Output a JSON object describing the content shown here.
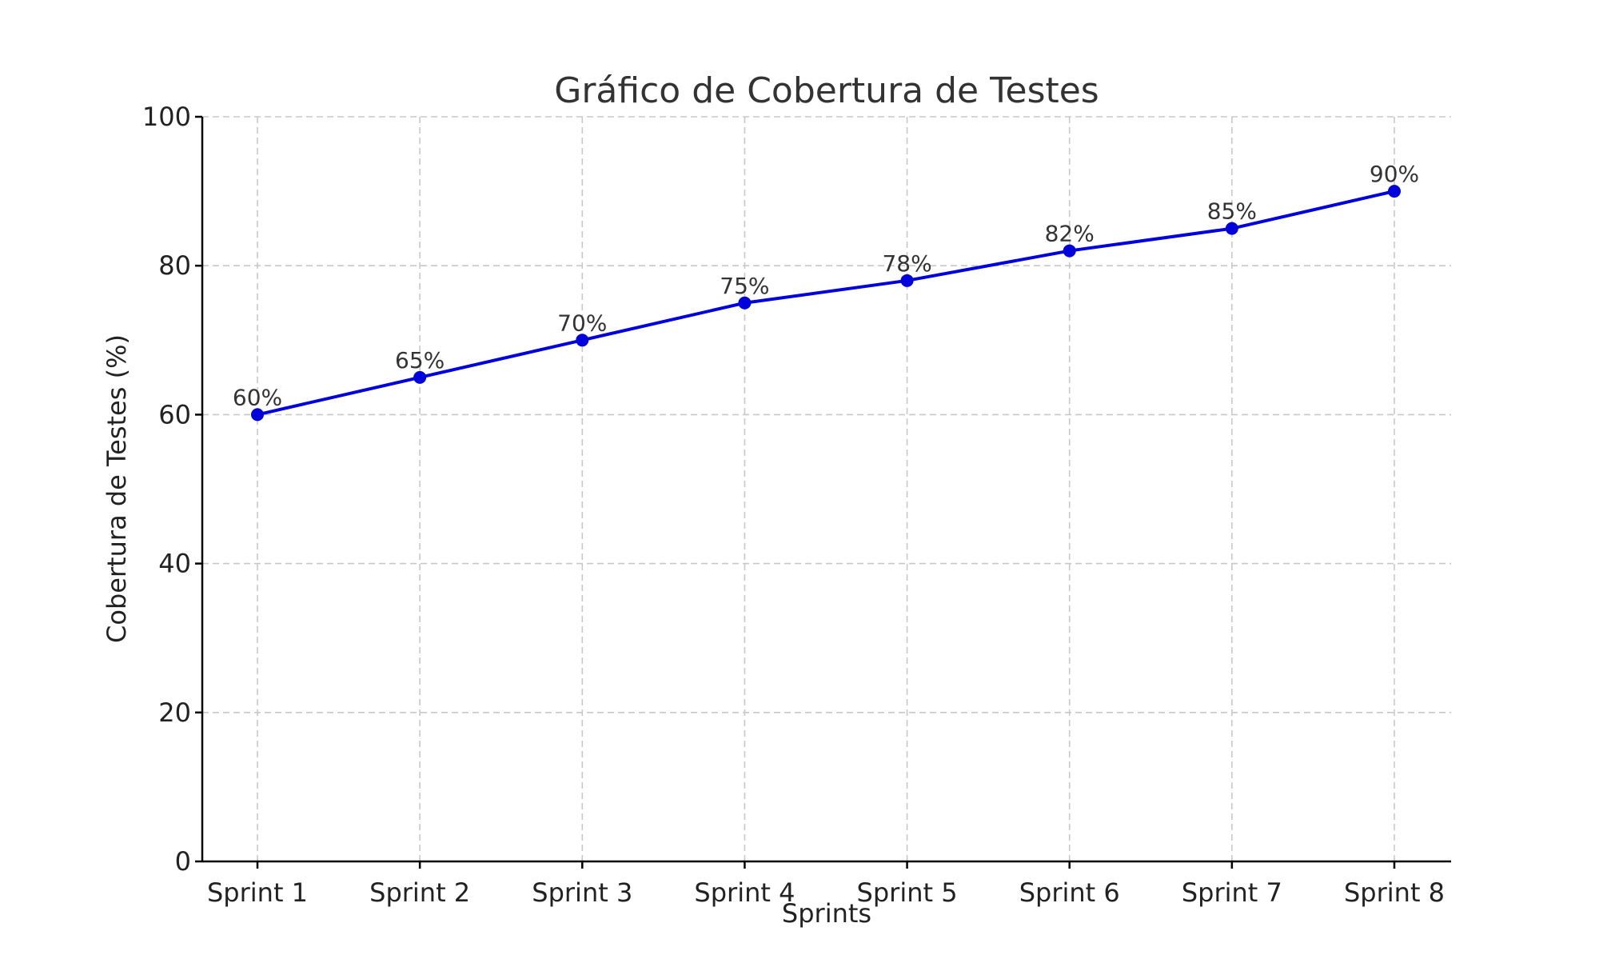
{
  "chart_data": {
    "type": "line",
    "title": "Gráfico de Cobertura de Testes",
    "xlabel": "Sprints",
    "ylabel": "Cobertura de Testes (%)",
    "categories": [
      "Sprint 1",
      "Sprint 2",
      "Sprint 3",
      "Sprint 4",
      "Sprint 5",
      "Sprint 6",
      "Sprint 7",
      "Sprint 8"
    ],
    "series": [
      {
        "values": [
          60,
          65,
          70,
          75,
          78,
          82,
          85,
          90
        ],
        "data_labels": [
          "60%",
          "65%",
          "70%",
          "75%",
          "78%",
          "82%",
          "85%",
          "90%"
        ],
        "color": "#0000dd",
        "marker": "circle"
      }
    ],
    "ylim": [
      0,
      100
    ],
    "yticks": [
      0,
      20,
      40,
      60,
      80,
      100
    ],
    "grid": true,
    "legend": "none"
  }
}
